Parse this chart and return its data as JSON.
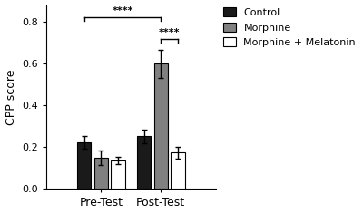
{
  "groups": [
    "Pre-Test",
    "Post-Test"
  ],
  "series": [
    "Control",
    "Morphine",
    "Morphine + Melatonin"
  ],
  "values": [
    [
      0.222,
      0.148,
      0.138
    ],
    [
      0.252,
      0.6,
      0.175
    ]
  ],
  "errors": [
    [
      0.03,
      0.035,
      0.018
    ],
    [
      0.032,
      0.068,
      0.028
    ]
  ],
  "bar_colors": [
    "#1a1a1a",
    "#808080",
    "#ffffff"
  ],
  "bar_edge_colors": [
    "#000000",
    "#000000",
    "#000000"
  ],
  "ylabel": "CPP score",
  "ylim": [
    0,
    0.88
  ],
  "yticks": [
    0.0,
    0.2,
    0.4,
    0.6,
    0.8
  ],
  "bar_width": 0.18,
  "legend_labels": [
    "Control",
    "Morphine",
    "Morphine + Melatonin"
  ],
  "group_centers": [
    0.32,
    1.05
  ],
  "background_color": "#ffffff"
}
